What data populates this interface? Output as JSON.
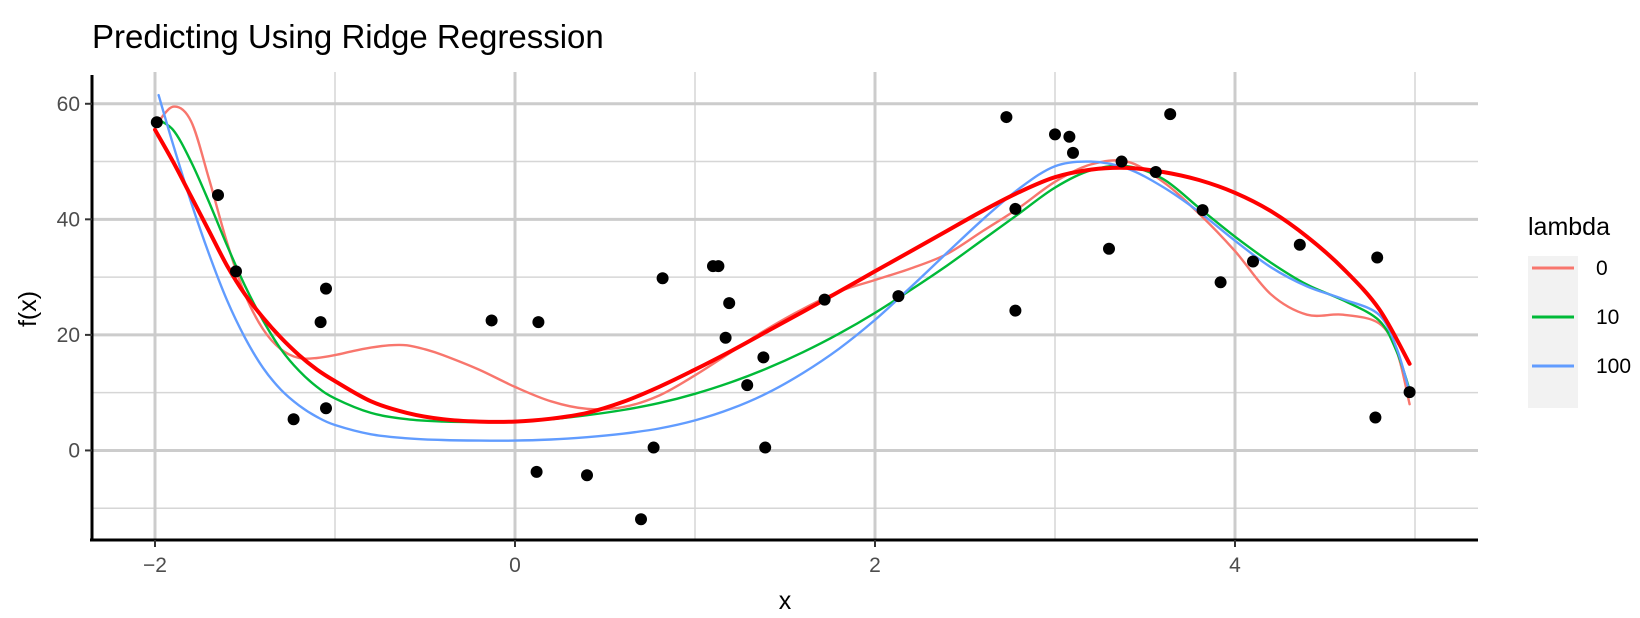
{
  "chart_data": {
    "type": "scatter",
    "title": "Predicting Using Ridge Regression",
    "xlabel": "x",
    "ylabel": "f(x)",
    "xlim": [
      -2.35,
      5.35
    ],
    "ylim": [
      -15.5,
      65.5
    ],
    "x_ticks": [
      -2,
      0,
      2,
      4
    ],
    "y_ticks": [
      0,
      20,
      40,
      60
    ],
    "grid": true,
    "legend": {
      "title": "lambda",
      "position": "right"
    },
    "points": [
      {
        "x": -1.99,
        "y": 56.8
      },
      {
        "x": -1.65,
        "y": 44.2
      },
      {
        "x": -1.55,
        "y": 31.0
      },
      {
        "x": -1.23,
        "y": 5.4
      },
      {
        "x": -1.08,
        "y": 22.2
      },
      {
        "x": -1.05,
        "y": 28.0
      },
      {
        "x": -1.05,
        "y": 7.3
      },
      {
        "x": -0.13,
        "y": 22.5
      },
      {
        "x": 0.13,
        "y": 22.2
      },
      {
        "x": 0.12,
        "y": -3.7
      },
      {
        "x": 0.4,
        "y": -4.3
      },
      {
        "x": 0.7,
        "y": -11.9
      },
      {
        "x": 0.77,
        "y": 0.5
      },
      {
        "x": 0.82,
        "y": 29.8
      },
      {
        "x": 1.1,
        "y": 31.9
      },
      {
        "x": 1.13,
        "y": 31.9
      },
      {
        "x": 1.17,
        "y": 19.5
      },
      {
        "x": 1.19,
        "y": 25.5
      },
      {
        "x": 1.29,
        "y": 11.3
      },
      {
        "x": 1.38,
        "y": 16.1
      },
      {
        "x": 1.39,
        "y": 0.5
      },
      {
        "x": 1.72,
        "y": 26.1
      },
      {
        "x": 2.13,
        "y": 26.7
      },
      {
        "x": 2.73,
        "y": 57.7
      },
      {
        "x": 2.78,
        "y": 41.8
      },
      {
        "x": 2.78,
        "y": 24.2
      },
      {
        "x": 3.0,
        "y": 54.7
      },
      {
        "x": 3.08,
        "y": 54.3
      },
      {
        "x": 3.1,
        "y": 51.5
      },
      {
        "x": 3.3,
        "y": 34.9
      },
      {
        "x": 3.37,
        "y": 50.0
      },
      {
        "x": 3.56,
        "y": 48.2
      },
      {
        "x": 3.64,
        "y": 58.2
      },
      {
        "x": 3.82,
        "y": 41.6
      },
      {
        "x": 3.92,
        "y": 29.1
      },
      {
        "x": 4.1,
        "y": 32.7
      },
      {
        "x": 4.36,
        "y": 35.6
      },
      {
        "x": 4.79,
        "y": 33.4
      },
      {
        "x": 4.78,
        "y": 5.7
      },
      {
        "x": 4.97,
        "y": 10.1
      }
    ],
    "series": [
      {
        "name": "0",
        "color": "#F8766D",
        "x": [
          -2.0,
          -1.9,
          -1.8,
          -1.7,
          -1.6,
          -1.5,
          -1.4,
          -1.3,
          -1.2,
          -1.1,
          -1.0,
          -0.9,
          -0.8,
          -0.7,
          -0.6,
          -0.5,
          -0.4,
          -0.2,
          0.0,
          0.2,
          0.4,
          0.6,
          0.8,
          1.0,
          1.2,
          1.4,
          1.6,
          1.8,
          2.0,
          2.2,
          2.4,
          2.6,
          2.8,
          3.0,
          3.2,
          3.4,
          3.6,
          3.8,
          4.0,
          4.2,
          4.4,
          4.6,
          4.8,
          4.9,
          4.97
        ],
        "y": [
          56,
          59.5,
          57,
          47,
          36,
          27,
          21,
          17.5,
          16,
          16,
          16.5,
          17.2,
          17.8,
          18.2,
          18.2,
          17.5,
          16.5,
          14,
          11,
          8.5,
          7.2,
          7.5,
          9.5,
          13,
          17,
          21,
          24.5,
          27.5,
          29.5,
          31.5,
          34,
          38,
          42,
          46.5,
          49.5,
          50,
          46.5,
          41,
          34.5,
          27,
          23.5,
          23.5,
          22,
          17,
          8
        ]
      },
      {
        "name": "10",
        "color": "#00BA38",
        "x": [
          -2.0,
          -1.9,
          -1.8,
          -1.7,
          -1.6,
          -1.5,
          -1.4,
          -1.3,
          -1.2,
          -1.1,
          -1.0,
          -0.8,
          -0.6,
          -0.4,
          -0.2,
          0.0,
          0.2,
          0.4,
          0.6,
          0.8,
          1.0,
          1.2,
          1.4,
          1.6,
          1.8,
          2.0,
          2.2,
          2.4,
          2.6,
          2.8,
          3.0,
          3.2,
          3.4,
          3.6,
          3.8,
          4.0,
          4.2,
          4.4,
          4.6,
          4.8,
          4.9,
          4.97
        ],
        "y": [
          57.5,
          55.5,
          50,
          43,
          35.5,
          28.5,
          22.5,
          17.5,
          13.8,
          11,
          9,
          6.5,
          5.4,
          5,
          4.9,
          5,
          5.4,
          6.1,
          7,
          8.2,
          9.8,
          11.8,
          14.2,
          17,
          20.2,
          23.8,
          27.8,
          32,
          36.5,
          41,
          45.5,
          48.5,
          49.2,
          47,
          42,
          37,
          32.5,
          28.7,
          26,
          22.5,
          17,
          10.5
        ]
      },
      {
        "name": "100",
        "color": "#619CFF",
        "x": [
          -1.98,
          -1.9,
          -1.8,
          -1.7,
          -1.6,
          -1.5,
          -1.4,
          -1.3,
          -1.2,
          -1.1,
          -1.0,
          -0.8,
          -0.6,
          -0.4,
          -0.2,
          0.0,
          0.2,
          0.4,
          0.6,
          0.8,
          1.0,
          1.2,
          1.4,
          1.6,
          1.8,
          2.0,
          2.2,
          2.4,
          2.6,
          2.8,
          3.0,
          3.2,
          3.4,
          3.6,
          3.8,
          4.0,
          4.2,
          4.4,
          4.6,
          4.8,
          4.9,
          4.97
        ],
        "y": [
          61.5,
          53,
          43,
          34,
          26,
          19.5,
          14.3,
          10.5,
          7.8,
          5.8,
          4.4,
          2.8,
          2.1,
          1.8,
          1.7,
          1.7,
          1.9,
          2.3,
          2.9,
          3.8,
          5.2,
          7.2,
          9.9,
          13.4,
          17.6,
          22.6,
          28.3,
          34.2,
          40,
          45.3,
          49.2,
          50,
          48.8,
          45.6,
          41.3,
          36.3,
          31.7,
          28.4,
          26.2,
          23.5,
          17.5,
          10
        ]
      },
      {
        "name": "",
        "color": "#FF0000",
        "width": 4,
        "x": [
          -2.0,
          -1.9,
          -1.8,
          -1.7,
          -1.6,
          -1.5,
          -1.4,
          -1.3,
          -1.2,
          -1.1,
          -1.0,
          -0.8,
          -0.6,
          -0.4,
          -0.2,
          0.0,
          0.2,
          0.4,
          0.6,
          0.8,
          1.0,
          1.2,
          1.4,
          1.6,
          1.8,
          2.0,
          2.2,
          2.4,
          2.6,
          2.8,
          3.0,
          3.2,
          3.4,
          3.6,
          3.8,
          4.0,
          4.2,
          4.4,
          4.6,
          4.8,
          4.97
        ],
        "y": [
          55.5,
          50,
          44,
          38,
          32,
          27,
          23,
          19.5,
          16.5,
          14,
          12,
          8.5,
          6.5,
          5.4,
          5,
          5,
          5.5,
          6.5,
          8.4,
          11,
          14,
          17.2,
          20.6,
          24,
          27.5,
          31,
          34.5,
          38,
          41.5,
          44.7,
          47.3,
          48.6,
          48.9,
          48.2,
          46.8,
          44.6,
          41.4,
          37,
          31.5,
          24.5,
          15
        ]
      }
    ]
  }
}
